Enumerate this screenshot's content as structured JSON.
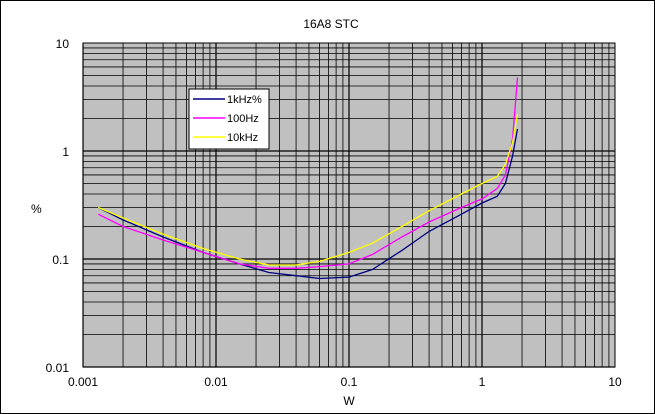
{
  "chart_data": {
    "type": "line",
    "title": "16A8 STC",
    "xlabel": "W",
    "ylabel": "%",
    "x_scale": "log",
    "y_scale": "log",
    "xlim": [
      0.001,
      10
    ],
    "ylim": [
      0.01,
      10
    ],
    "x_tick_labels": [
      "0.001",
      "0.01",
      "0.1",
      "1",
      "10"
    ],
    "y_tick_labels": [
      "0.01",
      "0.1",
      "1",
      "10"
    ],
    "grid": true,
    "legend_position": "upper-left",
    "plot_background": "#c0c0c0",
    "series": [
      {
        "name": "1kHz%",
        "color": "#000080",
        "x": [
          0.0013,
          0.002,
          0.004,
          0.008,
          0.015,
          0.025,
          0.04,
          0.06,
          0.1,
          0.15,
          0.25,
          0.4,
          0.7,
          1.0,
          1.3,
          1.5,
          1.7,
          1.85
        ],
        "y": [
          0.3,
          0.23,
          0.16,
          0.115,
          0.09,
          0.075,
          0.07,
          0.066,
          0.068,
          0.08,
          0.12,
          0.18,
          0.26,
          0.33,
          0.38,
          0.5,
          0.9,
          1.6
        ]
      },
      {
        "name": "100Hz",
        "color": "#ff00ff",
        "x": [
          0.0013,
          0.002,
          0.004,
          0.008,
          0.015,
          0.025,
          0.04,
          0.06,
          0.1,
          0.15,
          0.25,
          0.4,
          0.7,
          1.0,
          1.3,
          1.5,
          1.7,
          1.85
        ],
        "y": [
          0.26,
          0.2,
          0.15,
          0.115,
          0.09,
          0.082,
          0.082,
          0.085,
          0.09,
          0.11,
          0.16,
          0.22,
          0.3,
          0.36,
          0.45,
          0.6,
          1.3,
          4.8
        ]
      },
      {
        "name": "10kHz",
        "color": "#ffff00",
        "x": [
          0.0013,
          0.002,
          0.004,
          0.008,
          0.015,
          0.025,
          0.04,
          0.06,
          0.1,
          0.15,
          0.25,
          0.4,
          0.7,
          1.0,
          1.3,
          1.5,
          1.7,
          1.85
        ],
        "y": [
          0.3,
          0.24,
          0.17,
          0.125,
          0.1,
          0.088,
          0.088,
          0.095,
          0.115,
          0.14,
          0.2,
          0.28,
          0.4,
          0.5,
          0.58,
          0.75,
          1.2,
          2.2
        ]
      }
    ]
  }
}
